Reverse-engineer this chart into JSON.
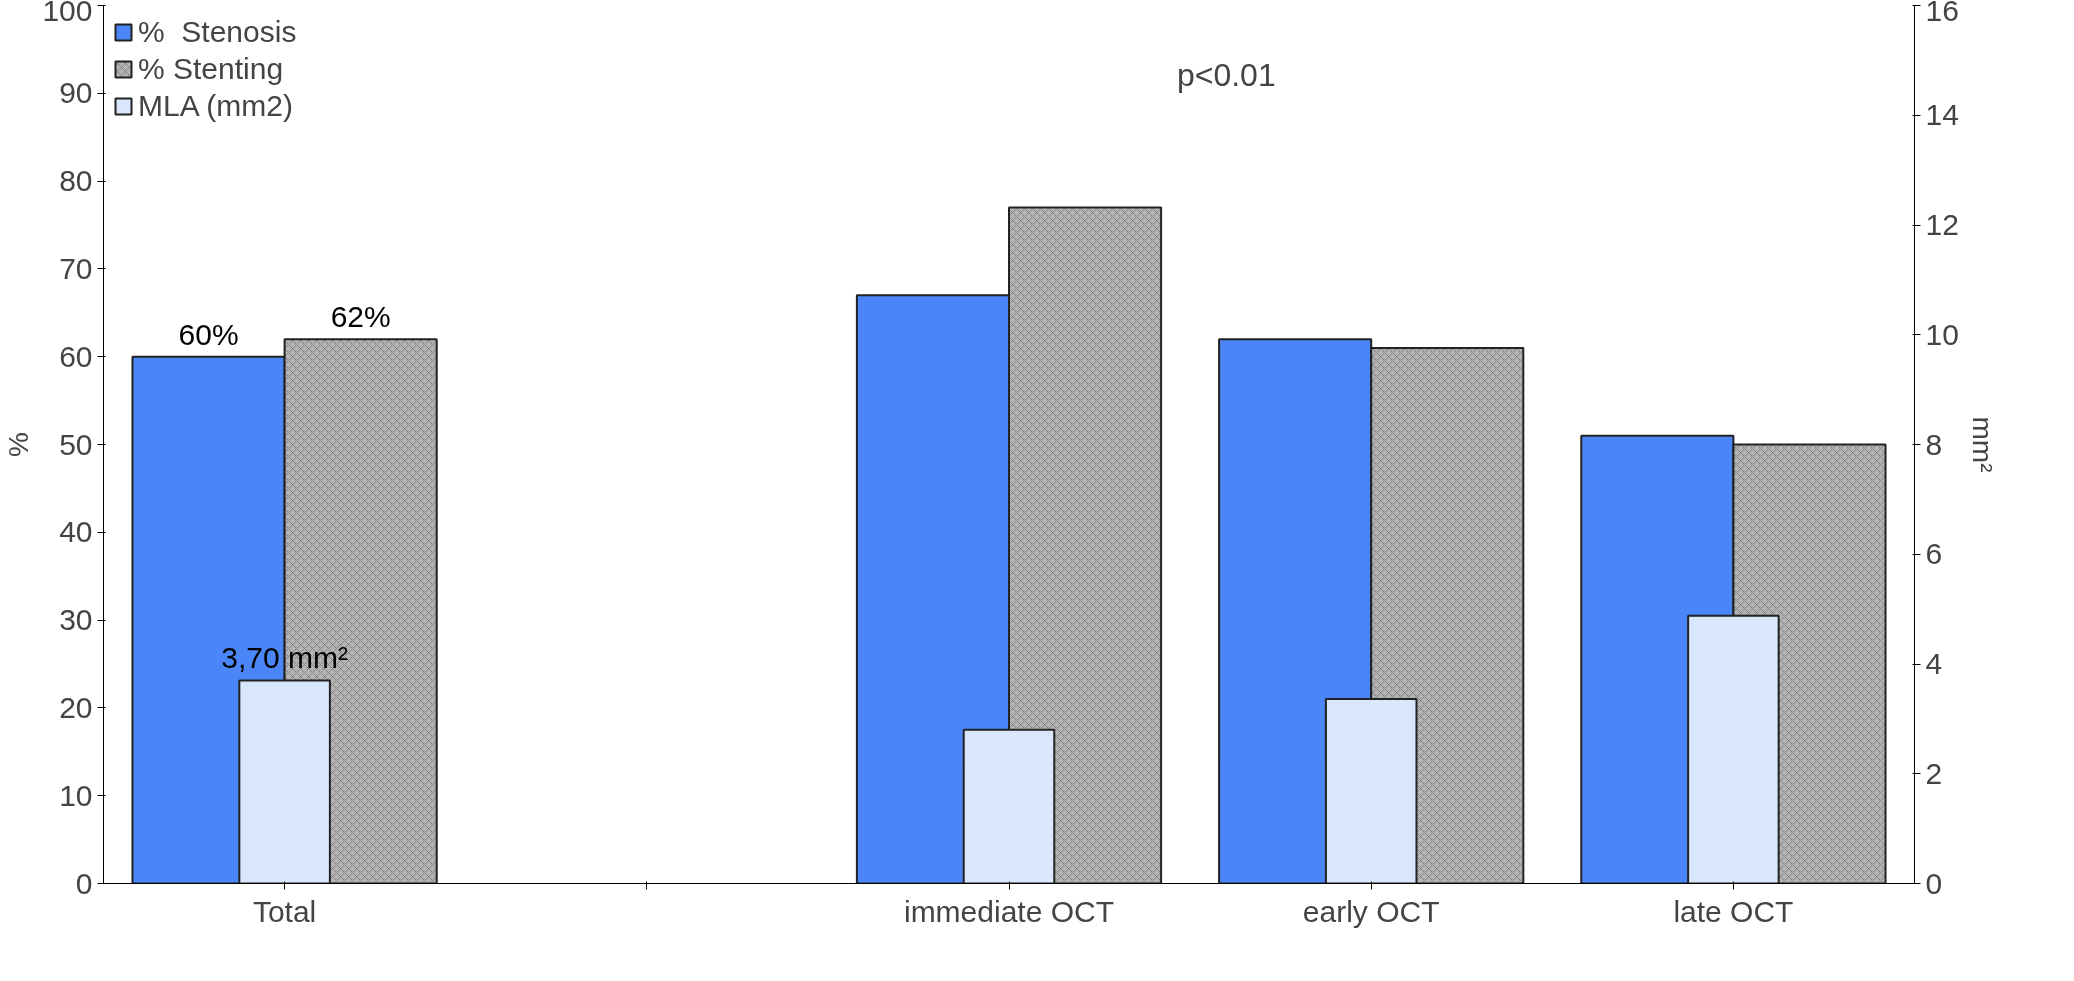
{
  "chart_data": {
    "type": "bar",
    "ylabel": "%",
    "y2label": "mm²",
    "categories": [
      "Total",
      null,
      "immediate OCT",
      "early OCT",
      "late OCT"
    ],
    "series": [
      {
        "name": "%  Stenosis",
        "color": "#4a86f7",
        "values": [
          60,
          null,
          67,
          62,
          51
        ],
        "value_labels": [
          "60%",
          null,
          null,
          null,
          null
        ]
      },
      {
        "name": "% Stenting",
        "color": "#b3b3b3",
        "values": [
          62,
          null,
          77,
          61,
          50
        ],
        "value_labels": [
          "62%",
          null,
          null,
          null,
          null
        ]
      },
      {
        "name": "MLA (mm2)",
        "color": "#d8e7fb",
        "axis": "y2",
        "values": [
          3.7,
          null,
          2.8,
          3.36,
          4.88
        ],
        "value_labels": [
          "3,70 mm²",
          null,
          null,
          null,
          null
        ]
      }
    ],
    "ylim": [
      0,
      100
    ],
    "yticks": [
      0,
      10,
      20,
      30,
      40,
      50,
      60,
      70,
      80,
      90,
      100
    ],
    "y2lim": [
      0,
      16
    ],
    "y2ticks": [
      0,
      2,
      4,
      6,
      8,
      10,
      12,
      14,
      16
    ],
    "annotations": [
      "p<0.01"
    ],
    "grid": false,
    "legend": "top left"
  }
}
